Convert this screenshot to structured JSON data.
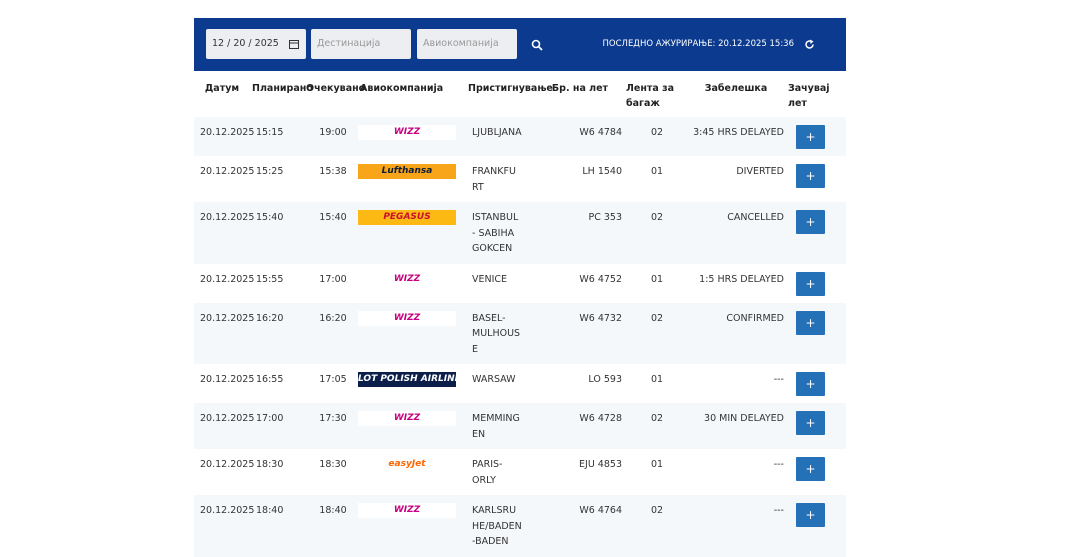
{
  "header": {
    "date_input": "12 / 20 / 2025",
    "destination_placeholder": "Дестинација",
    "airline_placeholder": "Авиокомпанија",
    "last_updated": "ПОСЛЕДНО АЖУРИРАЊЕ: 20.12.2025 15:36"
  },
  "table": {
    "columns": [
      "Датум",
      "Планирано",
      "Очекувано",
      "Авиокомпанија",
      "Пристигнување",
      "Бр. на лет",
      "Лента за багаж",
      "Забелешка",
      "Зачувај лет"
    ],
    "rows": [
      {
        "date": "20.12.2025",
        "scheduled": "15:15",
        "expected": "19:00",
        "airline": "WIZZ",
        "logo_bg": "#ffffff",
        "logo_fg": "#c6007e",
        "destination": "LJUBLJANA",
        "flight": "W6 4784",
        "belt": "02",
        "note": "3:45 HRS DELAYED",
        "button": "+"
      },
      {
        "date": "20.12.2025",
        "scheduled": "15:25",
        "expected": "15:38",
        "airline": "Lufthansa",
        "logo_bg": "#f9a51a",
        "logo_fg": "#0a1d3d",
        "destination": "FRANKFURT",
        "flight": "LH 1540",
        "belt": "01",
        "note": "DIVERTED",
        "button": "+"
      },
      {
        "date": "20.12.2025",
        "scheduled": "15:40",
        "expected": "15:40",
        "airline": "PEGASUS",
        "logo_bg": "#fdb913",
        "logo_fg": "#c8102e",
        "destination": "ISTANBUL - SABIHA GOKCEN",
        "flight": "PC 353",
        "belt": "02",
        "note": "CANCELLED",
        "button": "+"
      },
      {
        "date": "20.12.2025",
        "scheduled": "15:55",
        "expected": "17:00",
        "airline": "WIZZ",
        "logo_bg": "#ffffff",
        "logo_fg": "#c6007e",
        "destination": "VENICE",
        "flight": "W6 4752",
        "belt": "01",
        "note": "1:5 HRS DELAYED",
        "button": "+"
      },
      {
        "date": "20.12.2025",
        "scheduled": "16:20",
        "expected": "16:20",
        "airline": "WIZZ",
        "logo_bg": "#ffffff",
        "logo_fg": "#c6007e",
        "destination": "BASEL-MULHOUSE",
        "flight": "W6 4732",
        "belt": "02",
        "note": "CONFIRMED",
        "button": "+"
      },
      {
        "date": "20.12.2025",
        "scheduled": "16:55",
        "expected": "17:05",
        "airline": "LOT POLISH AIRLINES",
        "logo_bg": "#0b1f4a",
        "logo_fg": "#ffffff",
        "destination": "WARSAW",
        "flight": "LO 593",
        "belt": "01",
        "note": "---",
        "button": "+"
      },
      {
        "date": "20.12.2025",
        "scheduled": "17:00",
        "expected": "17:30",
        "airline": "WIZZ",
        "logo_bg": "#ffffff",
        "logo_fg": "#c6007e",
        "destination": "MEMMINGEN",
        "flight": "W6 4728",
        "belt": "02",
        "note": "30 MIN DELAYED",
        "button": "+"
      },
      {
        "date": "20.12.2025",
        "scheduled": "18:30",
        "expected": "18:30",
        "airline": "easyJet",
        "logo_bg": "transparent",
        "logo_fg": "#ff6600",
        "destination": "PARIS-ORLY",
        "flight": "EJU 4853",
        "belt": "01",
        "note": "---",
        "button": "+"
      },
      {
        "date": "20.12.2025",
        "scheduled": "18:40",
        "expected": "18:40",
        "airline": "WIZZ",
        "logo_bg": "#ffffff",
        "logo_fg": "#c6007e",
        "destination": "KARLSRUHE/BADEN-BADEN",
        "flight": "W6 4764",
        "belt": "02",
        "note": "---",
        "button": "+"
      }
    ]
  }
}
